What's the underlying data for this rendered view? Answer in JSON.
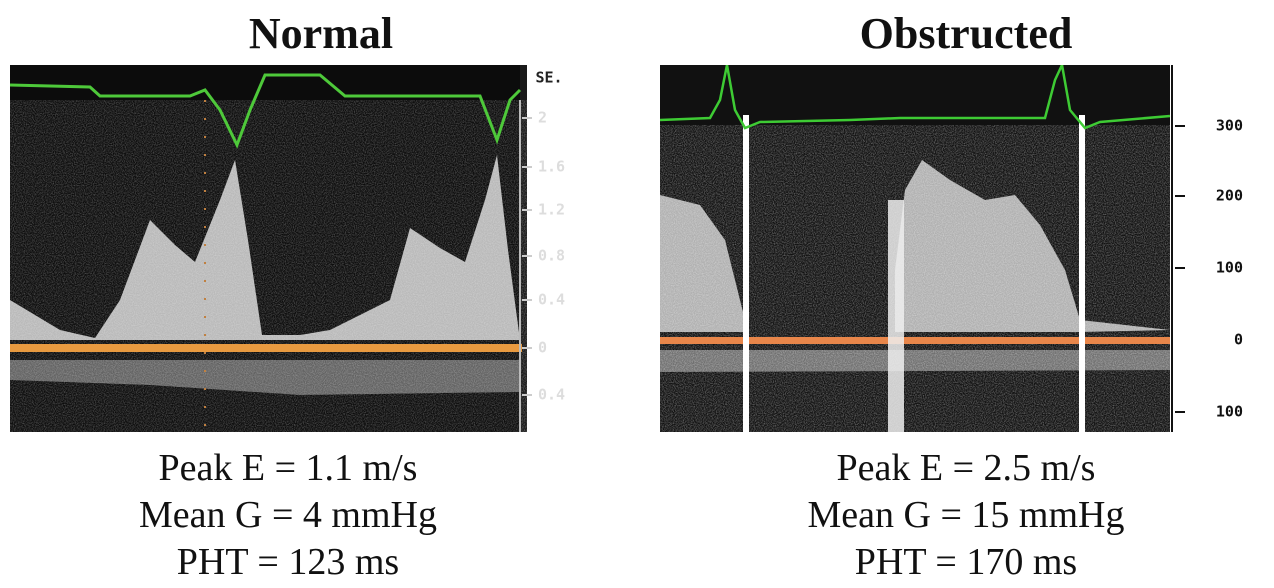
{
  "panels": [
    {
      "title": "Normal",
      "scale_labels": [
        "2",
        "1.6",
        "1.2",
        "0.8",
        "0.4",
        "0",
        "0.4"
      ],
      "corner_label": "SE.",
      "caption": [
        "Peak E = 1.1 m/s",
        "Mean G = 4 mmHg",
        "PHT = 123 ms"
      ]
    },
    {
      "title": "Obstructed",
      "scale_labels": [
        "300",
        "200",
        "100",
        "0",
        "100"
      ],
      "caption": [
        "Peak E = 2.5 m/s",
        "Mean G = 15 mmHg",
        "PHT = 170 ms"
      ]
    }
  ]
}
